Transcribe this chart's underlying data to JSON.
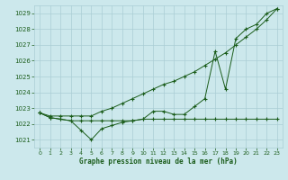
{
  "xlabel": "Graphe pression niveau de la mer (hPa)",
  "background_color": "#cce8ec",
  "grid_color": "#aacdd4",
  "line_color": "#1a5c1a",
  "text_color": "#1a5c1a",
  "ylim": [
    1020.5,
    1029.5
  ],
  "xlim": [
    -0.5,
    23.5
  ],
  "yticks": [
    1021,
    1022,
    1023,
    1024,
    1025,
    1026,
    1027,
    1028,
    1029
  ],
  "xticks": [
    0,
    1,
    2,
    3,
    4,
    5,
    6,
    7,
    8,
    9,
    10,
    11,
    12,
    13,
    14,
    15,
    16,
    17,
    18,
    19,
    20,
    21,
    22,
    23
  ],
  "series_flat": [
    1022.7,
    1022.4,
    1022.3,
    1022.2,
    1022.2,
    1022.2,
    1022.2,
    1022.2,
    1022.2,
    1022.2,
    1022.3,
    1022.3,
    1022.3,
    1022.3,
    1022.3,
    1022.3,
    1022.3,
    1022.3,
    1022.3,
    1022.3,
    1022.3,
    1022.3,
    1022.3,
    1022.3
  ],
  "series_wavy": [
    1022.7,
    1022.4,
    1022.3,
    1022.2,
    1021.6,
    1021.0,
    1021.7,
    1021.9,
    1022.1,
    1022.2,
    1022.3,
    1022.8,
    1022.8,
    1022.6,
    1022.6,
    1023.1,
    1023.6,
    1026.6,
    1024.2,
    1027.4,
    1028.0,
    1028.3,
    1029.0,
    1029.3
  ],
  "series_linear": [
    1022.7,
    1022.5,
    1022.5,
    1022.5,
    1022.5,
    1022.5,
    1022.8,
    1023.0,
    1023.3,
    1023.6,
    1023.9,
    1024.2,
    1024.5,
    1024.7,
    1025.0,
    1025.3,
    1025.7,
    1026.1,
    1026.5,
    1027.0,
    1027.5,
    1028.0,
    1028.6,
    1029.3
  ]
}
